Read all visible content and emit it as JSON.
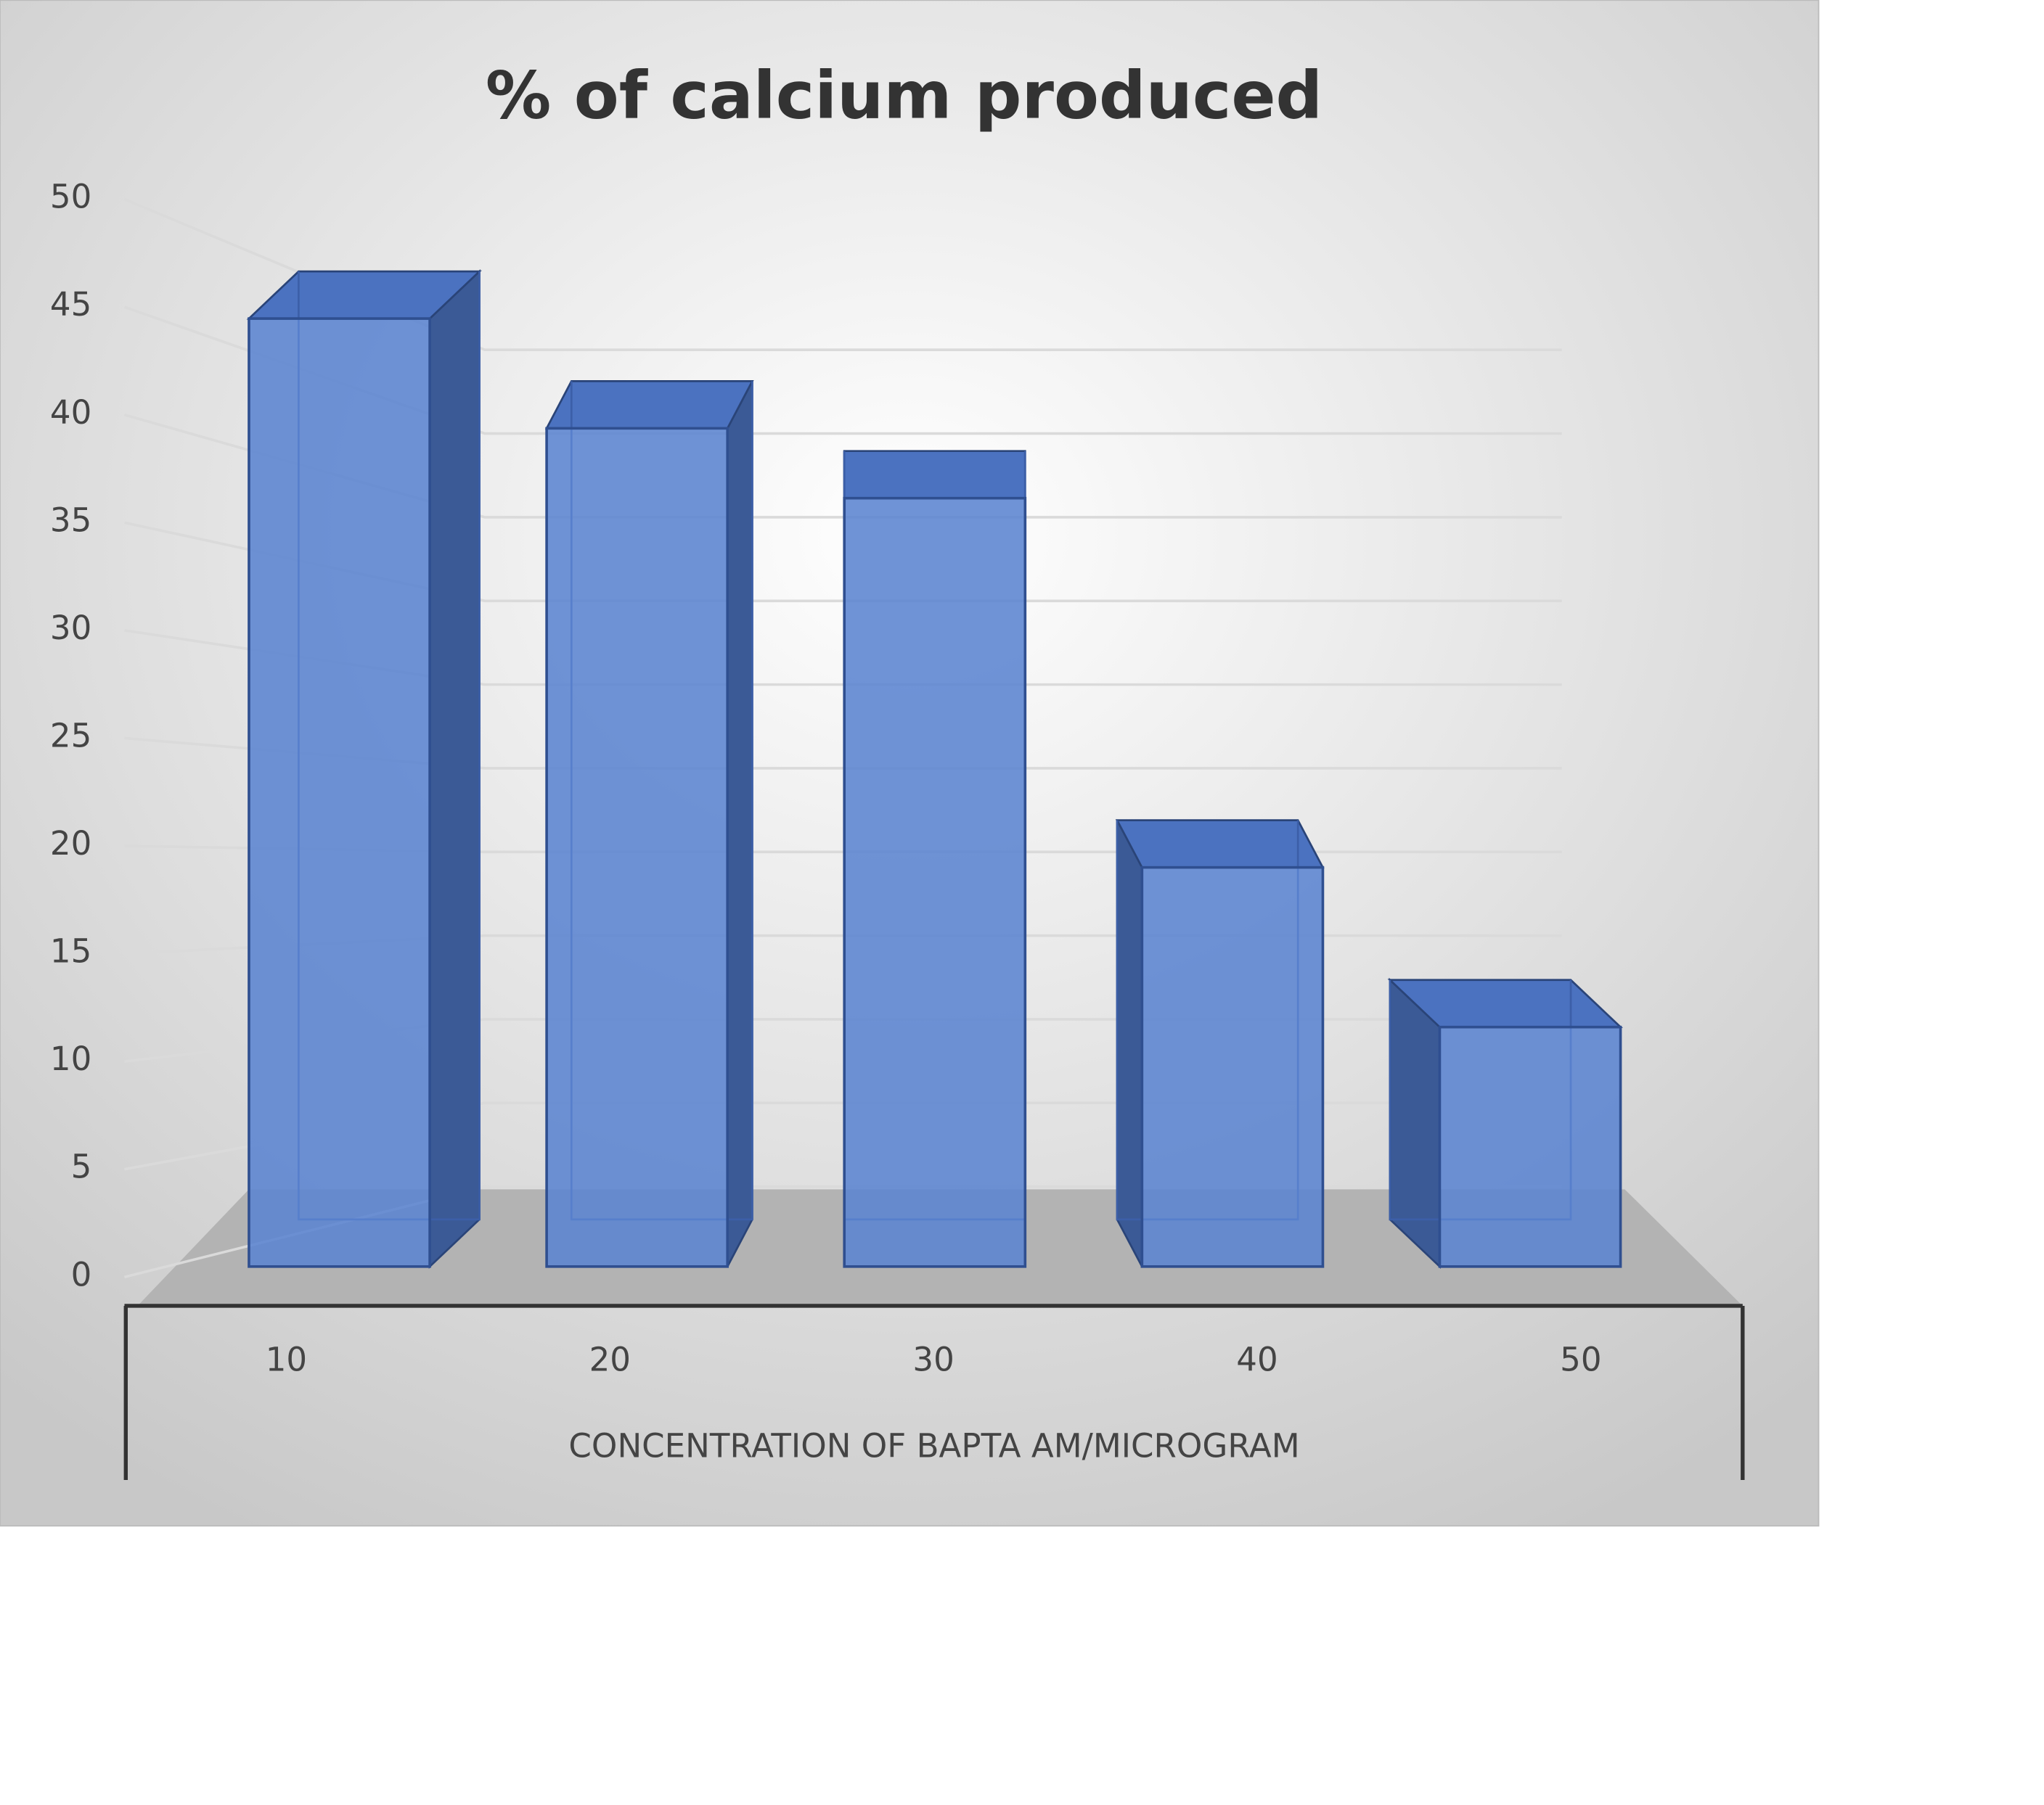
{
  "chart_data": {
    "type": "bar3d",
    "title": "% of calcium produced",
    "x_label": "CONCENTRATION OF BAPTA AM/MICROGRAM",
    "categories": [
      "10",
      "20",
      "30",
      "40",
      "50"
    ],
    "values": [
      47.5,
      42,
      38.5,
      20,
      12
    ],
    "color": "#5b84d0",
    "ylim": [
      0,
      50
    ],
    "yticks": [
      0,
      5,
      10,
      15,
      20,
      25,
      30,
      35,
      40,
      45,
      50
    ],
    "grid": true
  }
}
